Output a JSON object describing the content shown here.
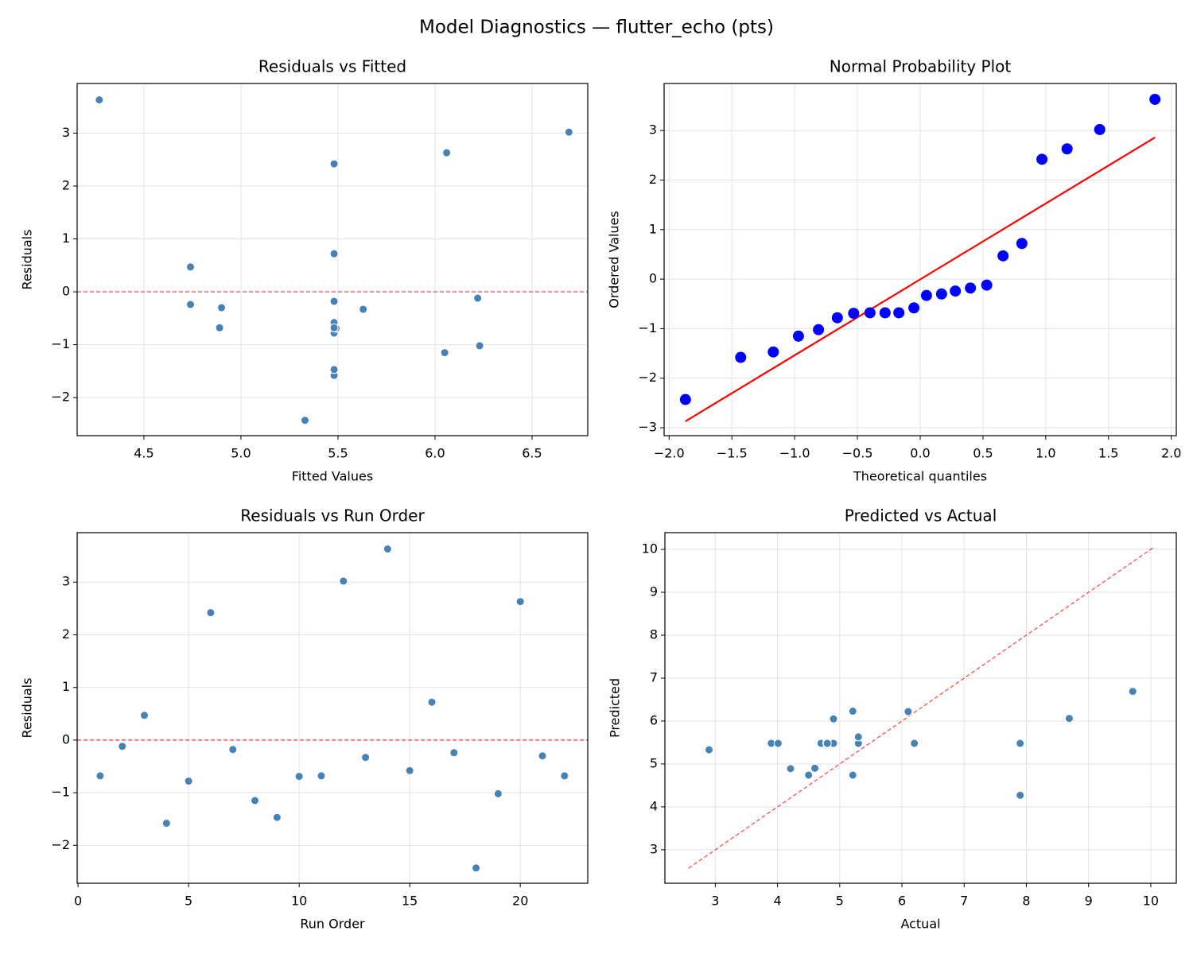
{
  "title": "Model Diagnostics — flutter_echo (pts)",
  "chart_data": [
    {
      "type": "scatter",
      "title": "Residuals vs Fitted",
      "x_label": "Fitted Values",
      "y_label": "Residuals",
      "x": [
        4.89,
        6.22,
        4.74,
        5.48,
        5.48,
        5.48,
        5.48,
        6.05,
        5.48,
        5.49,
        5.48,
        6.69,
        5.63,
        4.27,
        5.48,
        5.48,
        4.74,
        5.33,
        6.23,
        6.06,
        4.9,
        5.48
      ],
      "values": [
        -0.68,
        -0.12,
        0.47,
        -1.58,
        -0.78,
        2.42,
        -0.18,
        -1.15,
        -1.47,
        -0.69,
        -0.68,
        3.02,
        -0.33,
        3.63,
        -0.58,
        0.72,
        -0.24,
        -2.43,
        -1.02,
        2.63,
        -0.3,
        -0.68
      ],
      "color": "#4682b4",
      "marker_edge": "#ffffff",
      "hline": {
        "value": 0,
        "color": "#ff0000"
      },
      "xlim": [
        4.156,
        6.787
      ],
      "ylim": [
        -2.72,
        3.94
      ],
      "xticks": [
        4.5,
        {
          "value": 5,
          "label": "5.0"
        },
        5.5,
        {
          "value": 6,
          "label": "6.0"
        },
        6.5
      ],
      "yticks": [
        {
          "value": -2,
          "label": "−2"
        },
        {
          "value": -1,
          "label": "−1"
        },
        0,
        1,
        2,
        3
      ],
      "grid": true
    },
    {
      "type": "scatter",
      "title": "Normal Probability Plot",
      "x_label": "Theoretical quantiles",
      "y_label": "Ordered Values",
      "x": [
        -1.87,
        -1.43,
        -1.17,
        -0.97,
        -0.81,
        -0.66,
        -0.53,
        -0.4,
        -0.28,
        -0.17,
        -0.05,
        0.05,
        0.17,
        0.28,
        0.4,
        0.53,
        0.66,
        0.81,
        0.97,
        1.17,
        1.43,
        1.87
      ],
      "values": [
        -2.43,
        -1.58,
        -1.47,
        -1.15,
        -1.02,
        -0.78,
        -0.69,
        -0.68,
        -0.68,
        -0.68,
        -0.58,
        -0.33,
        -0.3,
        -0.24,
        -0.18,
        -0.12,
        0.47,
        0.72,
        2.42,
        2.63,
        3.02,
        3.63
      ],
      "color": "#0000ff",
      "reference_line": {
        "x": [
          -1.87,
          1.87
        ],
        "values": [
          -2.87,
          2.86
        ],
        "color": "#ff0000",
        "dashed": false
      },
      "xlim": [
        -2.04,
        2.04
      ],
      "ylim": [
        -3.16,
        3.95
      ],
      "xticks": [
        {
          "value": -2,
          "label": "−2.0"
        },
        {
          "value": -1.5,
          "label": "−1.5"
        },
        {
          "value": -1,
          "label": "−1.0"
        },
        {
          "value": -0.5,
          "label": "−0.5"
        },
        {
          "value": 0,
          "label": "0.0"
        },
        0.5,
        {
          "value": 1,
          "label": "1.0"
        },
        1.5,
        {
          "value": 2,
          "label": "2.0"
        }
      ],
      "yticks": [
        {
          "value": -3,
          "label": "−3"
        },
        {
          "value": -2,
          "label": "−2"
        },
        {
          "value": -1,
          "label": "−1"
        },
        0,
        1,
        2,
        3
      ],
      "grid": true
    },
    {
      "type": "scatter",
      "title": "Residuals vs Run Order",
      "x_label": "Run Order",
      "y_label": "Residuals",
      "x": [
        1,
        2,
        3,
        4,
        5,
        6,
        7,
        8,
        9,
        10,
        11,
        12,
        13,
        14,
        15,
        16,
        17,
        18,
        19,
        20,
        21,
        22
      ],
      "values": [
        -0.68,
        -0.12,
        0.47,
        -1.58,
        -0.78,
        2.42,
        -0.18,
        -1.15,
        -1.47,
        -0.69,
        -0.68,
        3.02,
        -0.33,
        3.63,
        -0.58,
        0.72,
        -0.24,
        -2.43,
        -1.02,
        2.63,
        -0.3,
        -0.68
      ],
      "color": "#4682b4",
      "marker_edge": "#ffffff",
      "hline": {
        "value": 0,
        "color": "#ff0000"
      },
      "xlim": [
        -0.04,
        23.05
      ],
      "ylim": [
        -2.72,
        3.94
      ],
      "xticks": [
        0,
        5,
        10,
        15,
        20
      ],
      "yticks": [
        {
          "value": -2,
          "label": "−2"
        },
        {
          "value": -1,
          "label": "−1"
        },
        0,
        1,
        2,
        3
      ],
      "grid": true
    },
    {
      "type": "scatter",
      "title": "Predicted vs Actual",
      "x_label": "Actual",
      "y_label": "Predicted",
      "x": [
        4.21,
        6.1,
        5.21,
        3.9,
        4.7,
        7.9,
        5.3,
        4.9,
        4.01,
        4.79,
        4.8,
        9.71,
        5.3,
        7.9,
        4.9,
        6.2,
        4.5,
        2.9,
        5.21,
        8.69,
        4.6,
        4.8
      ],
      "values": [
        4.89,
        6.22,
        4.74,
        5.48,
        5.48,
        5.48,
        5.48,
        6.05,
        5.48,
        5.49,
        5.48,
        6.69,
        5.63,
        4.27,
        5.48,
        5.48,
        4.74,
        5.33,
        6.23,
        6.06,
        4.9,
        5.48
      ],
      "color": "#4682b4",
      "marker_edge": "#ffffff",
      "reference_line": {
        "x": [
          2.57,
          10.05
        ],
        "values": [
          2.57,
          10.05
        ],
        "color": "#ff0000",
        "dashed": true
      },
      "xlim": [
        2.19,
        10.41
      ],
      "ylim": [
        2.22,
        10.39
      ],
      "xticks": [
        3,
        4,
        5,
        6,
        7,
        8,
        9,
        10
      ],
      "yticks": [
        3,
        4,
        5,
        6,
        7,
        8,
        9,
        10
      ],
      "grid": true
    }
  ]
}
